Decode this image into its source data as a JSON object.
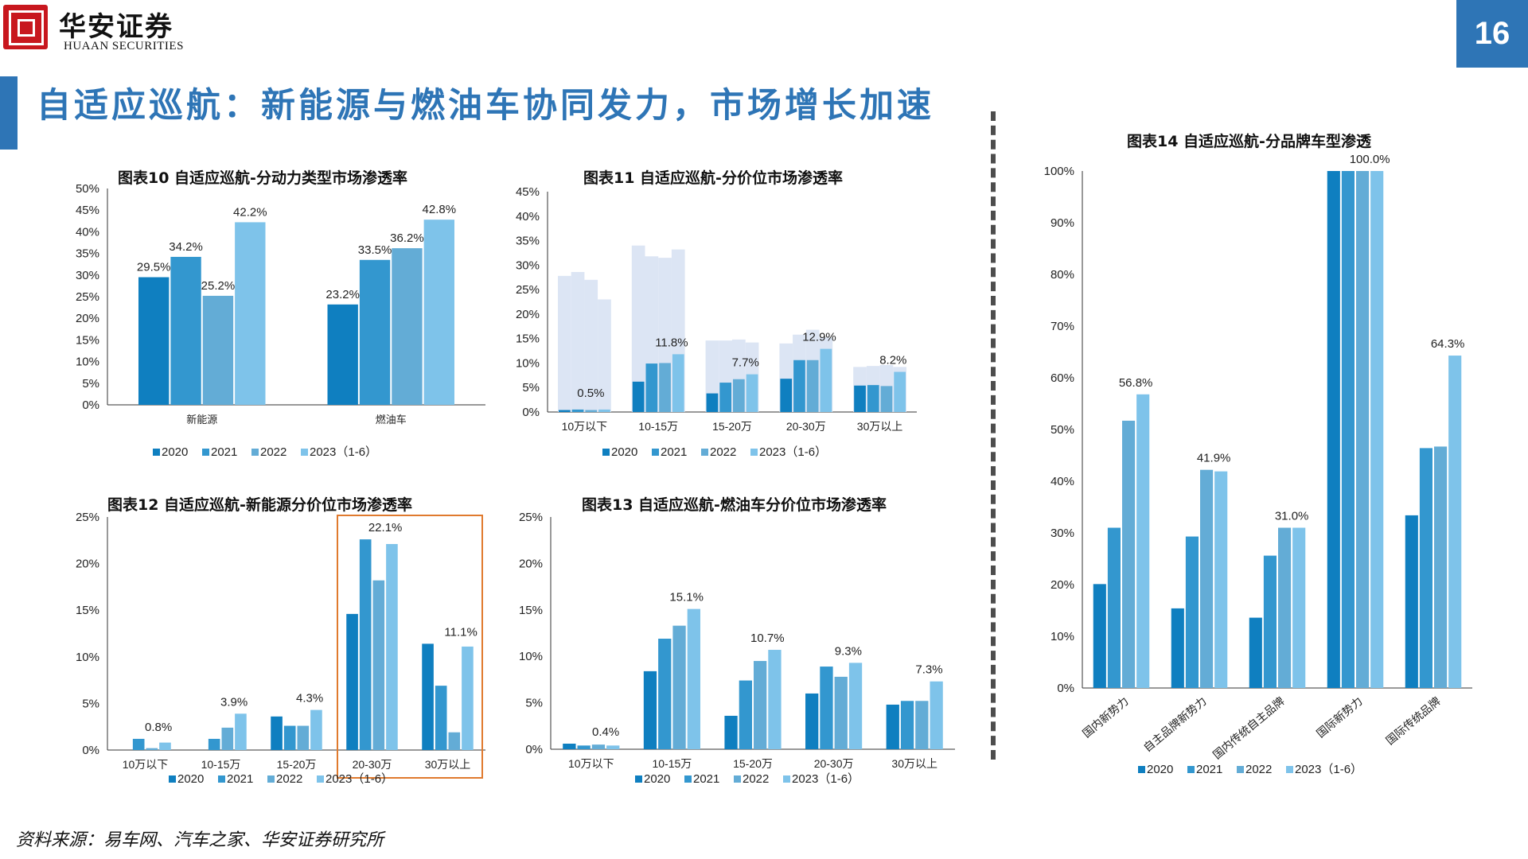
{
  "header": {
    "logo_cn": "华安证券",
    "logo_en": "HUAAN SECURITIES",
    "page_number": "16",
    "title": "自适应巡航：新能源与燃油车协同发力，市场增长加速"
  },
  "colors": {
    "brand_blue": "#2e75b6",
    "series": [
      "#0f7fc0",
      "#3397cf",
      "#63acd6",
      "#7ec3ea"
    ],
    "highlight_box": "#e07a2e"
  },
  "footer": {
    "source": "资料来源：易车网、汽车之家、华安证券研究所"
  },
  "chart_data": [
    {
      "id": "c10",
      "type": "bar",
      "title": "图表10 自适应巡航-分动力类型市场渗透率",
      "categories": [
        "新能源",
        "燃油车"
      ],
      "series": [
        {
          "name": "2020",
          "values": [
            29.5,
            23.2
          ]
        },
        {
          "name": "2021",
          "values": [
            34.2,
            33.5
          ]
        },
        {
          "name": "2022",
          "values": [
            25.2,
            36.2
          ]
        },
        {
          "name": "2023（1-6）",
          "values": [
            42.2,
            42.8
          ]
        }
      ],
      "labels": [
        [
          "29.5%",
          "23.2%"
        ],
        [
          "34.2%",
          "33.5%"
        ],
        [
          "25.2%",
          "36.2%"
        ],
        [
          "42.2%",
          "42.8%"
        ]
      ],
      "ylim": [
        0,
        50
      ],
      "yticks": [
        "0%",
        "5%",
        "10%",
        "15%",
        "20%",
        "25%",
        "30%",
        "35%",
        "40%",
        "45%",
        "50%"
      ],
      "legend": "bottom"
    },
    {
      "id": "c11",
      "type": "bar",
      "title": "图表11 自适应巡航-分价位市场渗透率",
      "categories": [
        "10万以下",
        "10-15万",
        "15-20万",
        "20-30万",
        "30万以上"
      ],
      "series": [
        {
          "name": "2020",
          "values": [
            0.4,
            6.2,
            3.8,
            6.8,
            5.4
          ]
        },
        {
          "name": "2021",
          "values": [
            0.5,
            9.9,
            6.0,
            10.6,
            5.5
          ]
        },
        {
          "name": "2022",
          "values": [
            0.4,
            10.0,
            6.7,
            10.6,
            5.3
          ]
        },
        {
          "name": "2023（1-6）",
          "values": [
            0.5,
            11.8,
            7.7,
            12.9,
            8.2
          ]
        }
      ],
      "background_bars": [
        [
          27.8,
          28.6,
          27.0,
          23.0
        ],
        [
          34.0,
          31.8,
          31.5,
          33.2
        ],
        [
          14.6,
          14.6,
          14.8,
          14.2
        ],
        [
          14.0,
          15.8,
          16.8,
          15.2
        ],
        [
          9.2,
          9.4,
          9.6,
          9.2
        ]
      ],
      "labels": [
        "0.5%",
        "11.8%",
        "7.7%",
        "12.9%",
        "8.2%"
      ],
      "ylim": [
        0,
        45
      ],
      "yticks": [
        "0%",
        "5%",
        "10%",
        "15%",
        "20%",
        "25%",
        "30%",
        "35%",
        "40%",
        "45%"
      ],
      "legend": "bottom"
    },
    {
      "id": "c12",
      "type": "bar",
      "title": "图表12 自适应巡航-新能源分价位市场渗透率",
      "categories": [
        "10万以下",
        "10-15万",
        "15-20万",
        "20-30万",
        "30万以上"
      ],
      "series": [
        {
          "name": "2020",
          "values": [
            0,
            0,
            3.6,
            14.6,
            11.4
          ]
        },
        {
          "name": "2021",
          "values": [
            1.2,
            1.2,
            2.6,
            22.6,
            6.9
          ]
        },
        {
          "name": "2022",
          "values": [
            0.2,
            2.4,
            2.6,
            18.2,
            1.9
          ]
        },
        {
          "name": "2023（1-6）",
          "values": [
            0.8,
            3.9,
            4.3,
            22.1,
            11.1
          ]
        }
      ],
      "labels": [
        "0.8%",
        "3.9%",
        "4.3%",
        "22.1%",
        "11.1%"
      ],
      "highlighted_categories": [
        "20-30万",
        "30万以上"
      ],
      "ylim": [
        0,
        25
      ],
      "yticks": [
        "0%",
        "5%",
        "10%",
        "15%",
        "20%",
        "25%"
      ],
      "legend": "bottom"
    },
    {
      "id": "c13",
      "type": "bar",
      "title": "图表13 自适应巡航-燃油车分价位市场渗透率",
      "categories": [
        "10万以下",
        "10-15万",
        "15-20万",
        "20-30万",
        "30万以上"
      ],
      "series": [
        {
          "name": "2020",
          "values": [
            0.6,
            8.4,
            3.6,
            6.0,
            4.8
          ]
        },
        {
          "name": "2021",
          "values": [
            0.4,
            11.9,
            7.4,
            8.9,
            5.2
          ]
        },
        {
          "name": "2022",
          "values": [
            0.5,
            13.3,
            9.5,
            7.8,
            5.2
          ]
        },
        {
          "name": "2023（1-6）",
          "values": [
            0.4,
            15.1,
            10.7,
            9.3,
            7.3
          ]
        }
      ],
      "labels": [
        "0.4%",
        "15.1%",
        "10.7%",
        "9.3%",
        "7.3%"
      ],
      "ylim": [
        0,
        25
      ],
      "yticks": [
        "0%",
        "5%",
        "10%",
        "15%",
        "20%",
        "25%"
      ],
      "legend": "bottom"
    },
    {
      "id": "c14",
      "type": "bar",
      "title": "图表14 自适应巡航-分品牌车型渗透",
      "categories": [
        "国内新势力",
        "自主品牌新势力",
        "国内传统自主品牌",
        "国际新势力",
        "国际传统品牌"
      ],
      "series": [
        {
          "name": "2020",
          "values": [
            20.1,
            15.4,
            13.6,
            100.0,
            33.4
          ]
        },
        {
          "name": "2021",
          "values": [
            31.0,
            29.3,
            25.6,
            100.0,
            46.4
          ]
        },
        {
          "name": "2022",
          "values": [
            51.7,
            42.2,
            31.0,
            100.0,
            46.7
          ]
        },
        {
          "name": "2023（1-6）",
          "values": [
            56.8,
            41.9,
            31.0,
            100.0,
            64.3
          ]
        }
      ],
      "labels": [
        "56.8%",
        "41.9%",
        "31.0%",
        "100.0%",
        "64.3%"
      ],
      "ylim": [
        0,
        100
      ],
      "yticks": [
        "0%",
        "10%",
        "20%",
        "30%",
        "40%",
        "50%",
        "60%",
        "70%",
        "80%",
        "90%",
        "100%"
      ],
      "legend": "bottom"
    }
  ]
}
